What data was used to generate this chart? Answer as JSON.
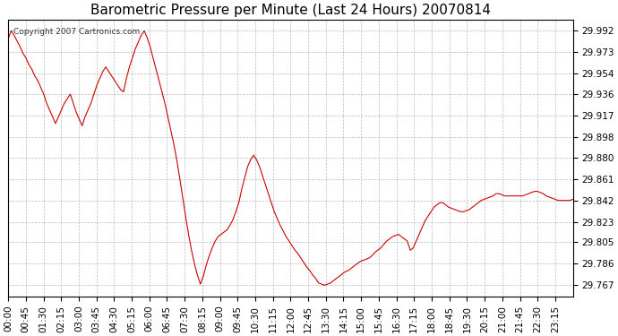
{
  "title": "Barometric Pressure per Minute (Last 24 Hours) 20070814",
  "copyright": "Copyright 2007 Cartronics.com",
  "line_color": "#cc0000",
  "bg_color": "#ffffff",
  "plot_bg_color": "#ffffff",
  "grid_color": "#aaaaaa",
  "yticks": [
    29.767,
    29.786,
    29.805,
    29.823,
    29.842,
    29.861,
    29.88,
    29.898,
    29.917,
    29.936,
    29.954,
    29.973,
    29.992
  ],
  "ylim": [
    29.757,
    30.002
  ],
  "xtick_labels": [
    "00:00",
    "00:45",
    "01:30",
    "02:15",
    "03:00",
    "03:45",
    "04:30",
    "05:15",
    "06:00",
    "06:45",
    "07:30",
    "08:15",
    "09:00",
    "09:45",
    "10:30",
    "11:15",
    "12:00",
    "12:45",
    "13:30",
    "14:15",
    "15:00",
    "15:45",
    "16:30",
    "17:15",
    "18:00",
    "18:45",
    "19:30",
    "20:15",
    "21:00",
    "21:45",
    "22:30",
    "23:15"
  ],
  "pressure_data": [
    29.985,
    29.992,
    29.988,
    29.983,
    29.978,
    29.972,
    29.968,
    29.962,
    29.958,
    29.952,
    29.948,
    29.942,
    29.936,
    29.928,
    29.922,
    29.916,
    29.91,
    29.916,
    29.922,
    29.928,
    29.932,
    29.936,
    29.928,
    29.92,
    29.914,
    29.908,
    29.916,
    29.922,
    29.928,
    29.936,
    29.944,
    29.95,
    29.956,
    29.96,
    29.956,
    29.952,
    29.948,
    29.944,
    29.94,
    29.938,
    29.95,
    29.96,
    29.968,
    29.976,
    29.982,
    29.988,
    29.992,
    29.986,
    29.978,
    29.968,
    29.958,
    29.948,
    29.938,
    29.928,
    29.916,
    29.904,
    29.892,
    29.878,
    29.862,
    29.845,
    29.828,
    29.812,
    29.798,
    29.786,
    29.776,
    29.768,
    29.775,
    29.785,
    29.793,
    29.8,
    29.806,
    29.81,
    29.812,
    29.814,
    29.816,
    29.82,
    29.825,
    29.832,
    29.84,
    29.852,
    29.862,
    29.872,
    29.878,
    29.882,
    29.878,
    29.872,
    29.864,
    29.856,
    29.848,
    29.84,
    29.832,
    29.826,
    29.82,
    29.815,
    29.81,
    29.806,
    29.802,
    29.798,
    29.795,
    29.791,
    29.787,
    29.783,
    29.78,
    29.776,
    29.773,
    29.769,
    29.768,
    29.767,
    29.768,
    29.769,
    29.771,
    29.773,
    29.775,
    29.777,
    29.779,
    29.78,
    29.782,
    29.784,
    29.786,
    29.788,
    29.789,
    29.79,
    29.791,
    29.793,
    29.796,
    29.798,
    29.8,
    29.803,
    29.806,
    29.808,
    29.81,
    29.811,
    29.812,
    29.81,
    29.808,
    29.806,
    29.798,
    29.8,
    29.806,
    29.812,
    29.818,
    29.824,
    29.828,
    29.832,
    29.836,
    29.838,
    29.84,
    29.84,
    29.838,
    29.836,
    29.835,
    29.834,
    29.833,
    29.832,
    29.832,
    29.833,
    29.834,
    29.836,
    29.838,
    29.84,
    29.842,
    29.843,
    29.844,
    29.845,
    29.846,
    29.848,
    29.848,
    29.847,
    29.846,
    29.846,
    29.846,
    29.846,
    29.846,
    29.846,
    29.846,
    29.847,
    29.848,
    29.849,
    29.85,
    29.85,
    29.849,
    29.848,
    29.846,
    29.845,
    29.844,
    29.843,
    29.842,
    29.842,
    29.842,
    29.842,
    29.842,
    29.843
  ]
}
